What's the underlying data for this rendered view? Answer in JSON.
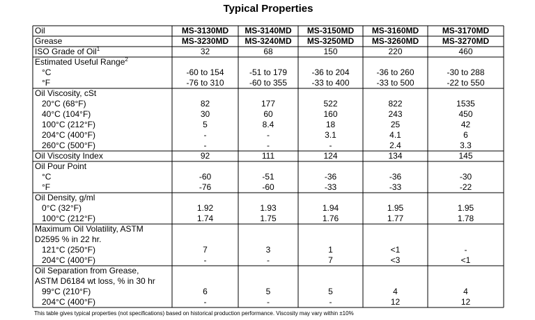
{
  "title": "Typical Properties",
  "table": {
    "groups": [
      {
        "lines": [
          {
            "label": "Oil",
            "cells": [
              "MS-3130MD",
              "MS-3140MD",
              "MS-3150MD",
              "MS-3160MD",
              "MS-3170MD"
            ]
          }
        ]
      },
      {
        "lines": [
          {
            "label": "Grease",
            "cells": [
              "MS-3230MD",
              "MS-3240MD",
              "MS-3250MD",
              "MS-3260MD",
              "MS-3270MD"
            ]
          }
        ]
      },
      {
        "lines": [
          {
            "label": "ISO Grade of Oil",
            "note": "1",
            "cells": [
              32,
              68,
              150,
              220,
              460
            ]
          }
        ]
      },
      {
        "lines": [
          {
            "label": "Estimated Useful Range",
            "note": "2"
          },
          {
            "label": "°C",
            "cells": [
              "-60 to 154",
              "-51 to 179",
              "-36 to 204",
              "-36 to 260",
              "-30 to 288"
            ]
          },
          {
            "label": "°F",
            "cells": [
              "-76 to 310",
              "-60 to 355",
              "-33 to 400",
              "-33 to 500",
              "-22 to 550"
            ]
          }
        ]
      },
      {
        "lines": [
          {
            "label": "Oil Viscosity, cSt"
          },
          {
            "label": "20°C (68°F)",
            "cells": [
              82,
              177,
              522,
              822,
              1535
            ]
          },
          {
            "label": "40°C (104°F)",
            "cells": [
              30,
              60,
              160,
              243,
              450
            ]
          },
          {
            "label": "100°C (212°F)",
            "cells": [
              5,
              8.4,
              18,
              25,
              42
            ]
          },
          {
            "label": "204°C (400°F)",
            "cells": [
              "-",
              "-",
              3.1,
              4.1,
              6
            ]
          },
          {
            "label": "260°C (500°F)",
            "cells": [
              "-",
              "-",
              "-",
              2.4,
              3.3
            ]
          }
        ]
      },
      {
        "lines": [
          {
            "label": "Oil Viscosity Index",
            "cells": [
              92,
              111,
              124,
              134,
              145
            ]
          }
        ]
      },
      {
        "lines": [
          {
            "label": "Oil Pour Point"
          },
          {
            "label": "°C",
            "cells": [
              -60,
              -51,
              -36,
              -36,
              -30
            ]
          },
          {
            "label": "°F",
            "cells": [
              -76,
              -60,
              -33,
              -33,
              -22
            ]
          }
        ]
      },
      {
        "lines": [
          {
            "label": "Oil Density, g/ml"
          },
          {
            "label": "0°C (32°F)",
            "cells": [
              1.92,
              1.93,
              1.94,
              1.95,
              1.95
            ]
          },
          {
            "label": "100°C (212°F)",
            "cells": [
              1.74,
              1.75,
              1.76,
              1.77,
              1.78
            ]
          }
        ]
      },
      {
        "lines": [
          {
            "label": "Maximum Oil Volatility, ASTM"
          },
          {
            "label": "D2595 % in 22 hr."
          },
          {
            "label": "121°C (250°F)",
            "cells": [
              7,
              3,
              1,
              "<1",
              "-"
            ]
          },
          {
            "label": "204°C (400°F)",
            "cells": [
              "-",
              "-",
              7,
              "<3",
              "<1"
            ]
          }
        ]
      },
      {
        "lines": [
          {
            "label": "Oil Separation from Grease,"
          },
          {
            "label": "ASTM D6184 wt loss, % in 30 hr"
          },
          {
            "label": "99°C (210°F)",
            "cells": [
              6,
              5,
              5,
              4,
              4
            ]
          },
          {
            "label": "204°C (400°F)",
            "cells": [
              "-",
              "-",
              "-",
              12,
              12
            ]
          }
        ]
      }
    ]
  },
  "footnote": "This table gives typical properties (not specifications) based on historical production performance. Viscosity may vary within ±10%"
}
